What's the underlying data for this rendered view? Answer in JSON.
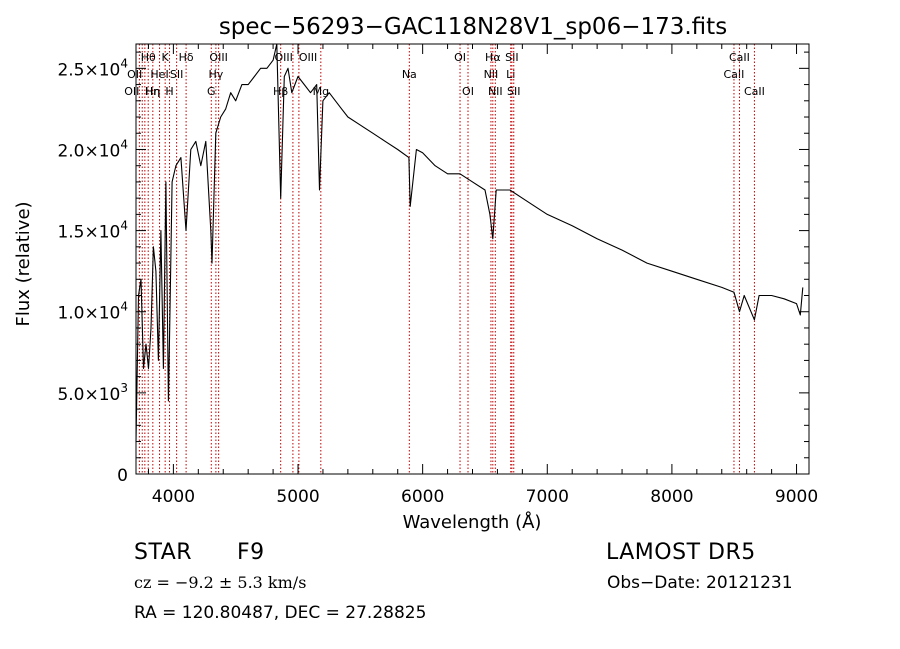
{
  "chart_data": {
    "type": "line",
    "title": "spec−56293−GAC118N28V1_sp06−173.fits",
    "xlabel": "Wavelength (Å)",
    "ylabel": "Flux (relative)",
    "xlim": [
      3700,
      9100
    ],
    "ylim": [
      0,
      26500
    ],
    "xticks": [
      4000,
      5000,
      6000,
      7000,
      8000,
      9000
    ],
    "xtick_labels": [
      "4000",
      "5000",
      "6000",
      "7000",
      "8000",
      "9000"
    ],
    "yticks": [
      {
        "value": 0,
        "mantissa": "0",
        "exp": ""
      },
      {
        "value": 5000,
        "mantissa": "5.0×10",
        "exp": "3"
      },
      {
        "value": 10000,
        "mantissa": "1.0×10",
        "exp": "4"
      },
      {
        "value": 15000,
        "mantissa": "1.5×10",
        "exp": "4"
      },
      {
        "value": 20000,
        "mantissa": "2.0×10",
        "exp": "4"
      },
      {
        "value": 25000,
        "mantissa": "2.5×10",
        "exp": "4"
      }
    ],
    "grid": false,
    "series": [
      {
        "color": "#000000",
        "x": [
          3700,
          3720,
          3740,
          3760,
          3780,
          3800,
          3820,
          3840,
          3860,
          3880,
          3900,
          3920,
          3940,
          3960,
          3970,
          3990,
          4020,
          4060,
          4101,
          4140,
          4180,
          4220,
          4260,
          4300,
          4310,
          4340,
          4380,
          4420,
          4460,
          4500,
          4550,
          4600,
          4650,
          4700,
          4750,
          4800,
          4830,
          4861,
          4890,
          4920,
          4950,
          5000,
          5050,
          5100,
          5150,
          5172,
          5200,
          5250,
          5300,
          5350,
          5400,
          5500,
          5600,
          5700,
          5800,
          5890,
          5900,
          5950,
          6000,
          6100,
          6200,
          6300,
          6400,
          6500,
          6540,
          6563,
          6590,
          6650,
          6700,
          6800,
          6900,
          7000,
          7200,
          7400,
          7600,
          7800,
          8000,
          8200,
          8400,
          8498,
          8542,
          8580,
          8662,
          8700,
          8800,
          8900,
          9000,
          9030,
          9050
        ],
        "y": [
          2000,
          11000,
          12000,
          6500,
          8000,
          6500,
          9000,
          14000,
          12500,
          7000,
          15000,
          6500,
          18000,
          4500,
          9000,
          18000,
          19000,
          19500,
          15000,
          20000,
          20500,
          19000,
          20500,
          15000,
          13000,
          21000,
          22000,
          22500,
          23500,
          23000,
          24000,
          24000,
          24500,
          25000,
          25000,
          25500,
          26500,
          17000,
          24500,
          25000,
          23500,
          24500,
          24000,
          23500,
          24000,
          17500,
          23000,
          23500,
          23000,
          22500,
          22000,
          21500,
          21000,
          20500,
          20000,
          19500,
          16500,
          20000,
          19800,
          19000,
          18500,
          18500,
          18000,
          17500,
          16000,
          14500,
          17500,
          17500,
          17500,
          17000,
          16500,
          16000,
          15300,
          14500,
          13800,
          13000,
          12500,
          12000,
          11500,
          11200,
          10000,
          11000,
          9500,
          11000,
          11000,
          10800,
          10500,
          9800,
          11500
        ]
      }
    ],
    "line_markers": [
      {
        "wl": 3727,
        "label": "OII",
        "row": 2,
        "align": "right"
      },
      {
        "wl": 3750,
        "label": "OII",
        "row": 1,
        "align": "right"
      },
      {
        "wl": 3771,
        "label": "Hη",
        "row": 2,
        "align": "left"
      },
      {
        "wl": 3798,
        "label": "Hθ",
        "row": 0,
        "align": "center"
      },
      {
        "wl": 3835,
        "label": "Hη",
        "row": 2,
        "align": "center"
      },
      {
        "wl": 3889,
        "label": "HeI",
        "row": 1,
        "align": "center"
      },
      {
        "wl": 3934,
        "label": "K",
        "row": 0,
        "align": "center"
      },
      {
        "wl": 3969,
        "label": "H",
        "row": 2,
        "align": "center"
      },
      {
        "wl": 4026,
        "label": "SII",
        "row": 1,
        "align": "center"
      },
      {
        "wl": 4102,
        "label": "Hδ",
        "row": 0,
        "align": "center"
      },
      {
        "wl": 4304,
        "label": "G",
        "row": 2,
        "align": "center"
      },
      {
        "wl": 4341,
        "label": "Hγ",
        "row": 1,
        "align": "center"
      },
      {
        "wl": 4363,
        "label": "OIII",
        "row": 0,
        "align": "center"
      },
      {
        "wl": 4861,
        "label": "Hβ",
        "row": 2,
        "align": "center"
      },
      {
        "wl": 4959,
        "label": "OIII",
        "row": 0,
        "align": "right"
      },
      {
        "wl": 5007,
        "label": "OIII",
        "row": 0,
        "align": "left"
      },
      {
        "wl": 5183,
        "label": "Mg",
        "row": 2,
        "align": "center"
      },
      {
        "wl": 5893,
        "label": "Na",
        "row": 1,
        "align": "center"
      },
      {
        "wl": 6300,
        "label": "OI",
        "row": 0,
        "align": "center"
      },
      {
        "wl": 6364,
        "label": "OI",
        "row": 2,
        "align": "center"
      },
      {
        "wl": 6548,
        "label": "NII",
        "row": 1,
        "align": "center"
      },
      {
        "wl": 6563,
        "label": "Hα",
        "row": 0,
        "align": "center"
      },
      {
        "wl": 6583,
        "label": "NII",
        "row": 2,
        "align": "center"
      },
      {
        "wl": 6707,
        "label": "Li",
        "row": 1,
        "align": "center"
      },
      {
        "wl": 6716,
        "label": "SII",
        "row": 0,
        "align": "center"
      },
      {
        "wl": 6731,
        "label": "SII",
        "row": 2,
        "align": "center"
      },
      {
        "wl": 8498,
        "label": "CaII",
        "row": 1,
        "align": "center"
      },
      {
        "wl": 8542,
        "label": "CaII",
        "row": 0,
        "align": "center"
      },
      {
        "wl": 8662,
        "label": "CaII",
        "row": 2,
        "align": "center"
      }
    ]
  },
  "info": {
    "class_text": "STAR",
    "subclass_text": "F9",
    "survey_text": "LAMOST DR5",
    "cz_text": "cz = −9.2 ± 5.3 km/s",
    "obs_date_text": "Obs−Date: 20121231",
    "coords_text": "RA = 120.80487, DEC =  27.28825"
  },
  "colors": {
    "spectrum": "#000000",
    "line_marker": "#c00000",
    "axis": "#000000",
    "background": "#ffffff"
  }
}
